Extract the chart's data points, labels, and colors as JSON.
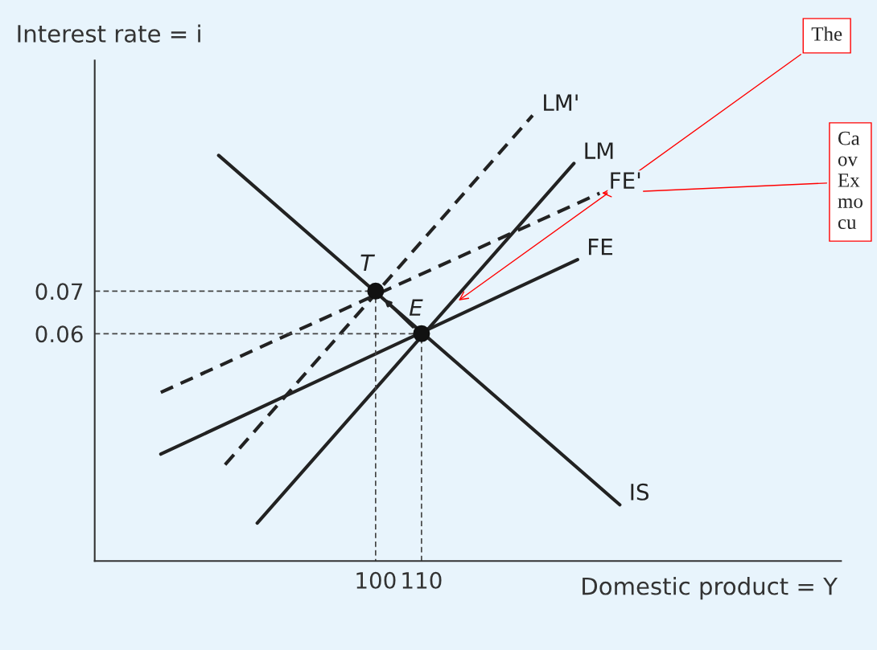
{
  "chart_data": {
    "type": "line",
    "ylabel": "Interest rate = i",
    "xlabel": "Domestic product = Y",
    "xlim": [
      38.8,
      201.4
    ],
    "ylim": [
      0.0066,
      0.1242
    ],
    "xticks": [
      100,
      110
    ],
    "yticks": [
      0.06,
      0.07
    ],
    "grid": false,
    "legend": false,
    "series": [
      {
        "name": "LM'",
        "color": "#222222",
        "line_style": "dashed",
        "x": [
          67.2,
          134.2
        ],
        "values": [
          0.0292,
          0.1113
        ]
      },
      {
        "name": "LM",
        "color": "#222222",
        "line_style": "solid",
        "x": [
          74.2,
          143.2
        ],
        "values": [
          0.0155,
          0.1
        ]
      },
      {
        "name": "FE'",
        "color": "#222222",
        "line_style": "dashed",
        "x": [
          53.2,
          148.8
        ],
        "values": [
          0.0462,
          0.093
        ]
      },
      {
        "name": "FE",
        "color": "#222222",
        "line_style": "solid",
        "x": [
          53.2,
          144.0
        ],
        "values": [
          0.0317,
          0.0774
        ]
      },
      {
        "name": "IS",
        "color": "#222222",
        "line_style": "solid",
        "x": [
          65.8,
          153.2
        ],
        "values": [
          0.1019,
          0.0198
        ]
      },
      {
        "color": "#444444",
        "line_style": "dashed",
        "x": [
          38.8,
          100,
          100
        ],
        "values": [
          0.07,
          0.07,
          0.0066
        ]
      },
      {
        "color": "#444444",
        "line_style": "dashed",
        "x": [
          38.8,
          110,
          110
        ],
        "values": [
          0.06,
          0.06,
          0.0066
        ]
      },
      {
        "type": "scatter",
        "color": "#111111",
        "marker": "circle",
        "x": [
          100,
          110
        ],
        "values": [
          0.07,
          0.06
        ]
      }
    ],
    "annotations": [
      {
        "text": "T",
        "x": 100,
        "y": 0.07
      },
      {
        "text": "E",
        "x": 110,
        "y": 0.06
      },
      {
        "text": "The",
        "x": 117.7,
        "y": 0.0675
      },
      {
        "text": "Ca\nov\nEx\nmo\ncu",
        "x": 148.8,
        "y": 0.093
      }
    ]
  }
}
